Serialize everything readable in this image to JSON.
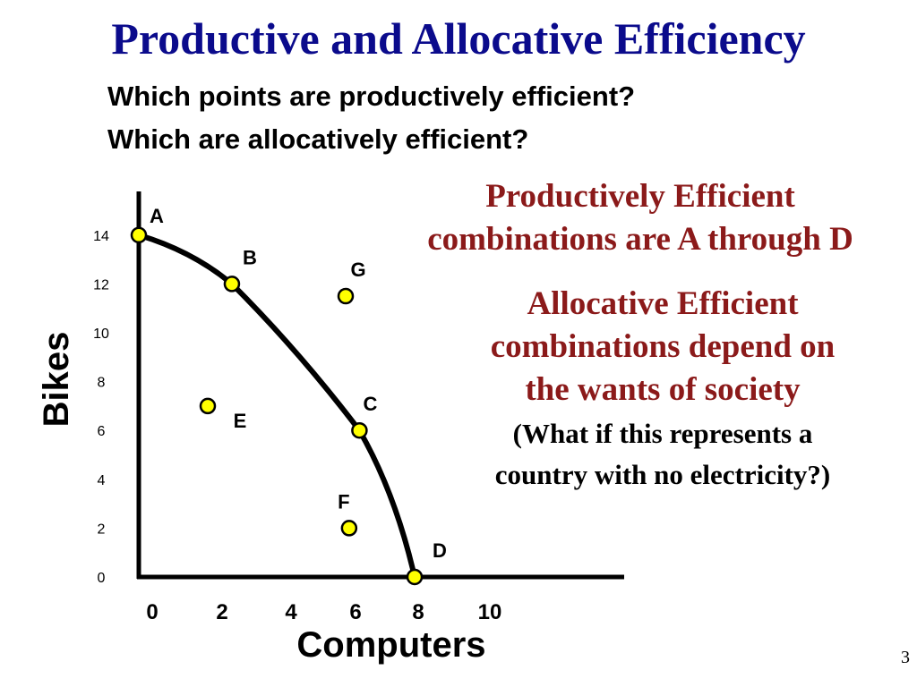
{
  "slide": {
    "title": "Productive and Allocative Efficiency",
    "question1": "Which points are productively efficient?",
    "question2": "Which are allocatively efficient?",
    "note_productive_line1": "Productively Efficient",
    "note_productive_line2": "combinations are A through D",
    "note_allocative_line1": "Allocative Efficient",
    "note_allocative_line2": "combinations depend on",
    "note_allocative_line3": "the wants of society",
    "note_question_line1": "(What if this represents a",
    "note_question_line2": "country with no electricity?)",
    "page_number": "3"
  },
  "colors": {
    "title": "#0b0b8c",
    "note_red": "#8b1a1a",
    "point_fill": "#ffff00",
    "curve": "#000000"
  },
  "chart_data": {
    "type": "scatter",
    "xlabel": "Computers",
    "ylabel": "Bikes",
    "x_ticks": [
      "0",
      "2",
      "4",
      "6",
      "8",
      "10"
    ],
    "y_ticks": [
      "0",
      "2",
      "4",
      "6",
      "8",
      "10",
      "12",
      "14"
    ],
    "xlim": [
      0,
      10
    ],
    "ylim": [
      0,
      14
    ],
    "grid": false,
    "curve": {
      "name": "",
      "through_points": [
        "A",
        "B",
        "C",
        "D"
      ]
    },
    "points": [
      {
        "label": "A",
        "x": 0,
        "y": 14
      },
      {
        "label": "B",
        "x": 2.7,
        "y": 12
      },
      {
        "label": "C",
        "x": 6.4,
        "y": 6
      },
      {
        "label": "D",
        "x": 8,
        "y": 0
      },
      {
        "label": "E",
        "x": 2,
        "y": 7
      },
      {
        "label": "F",
        "x": 6.1,
        "y": 2
      },
      {
        "label": "G",
        "x": 6.0,
        "y": 11.5
      }
    ]
  }
}
